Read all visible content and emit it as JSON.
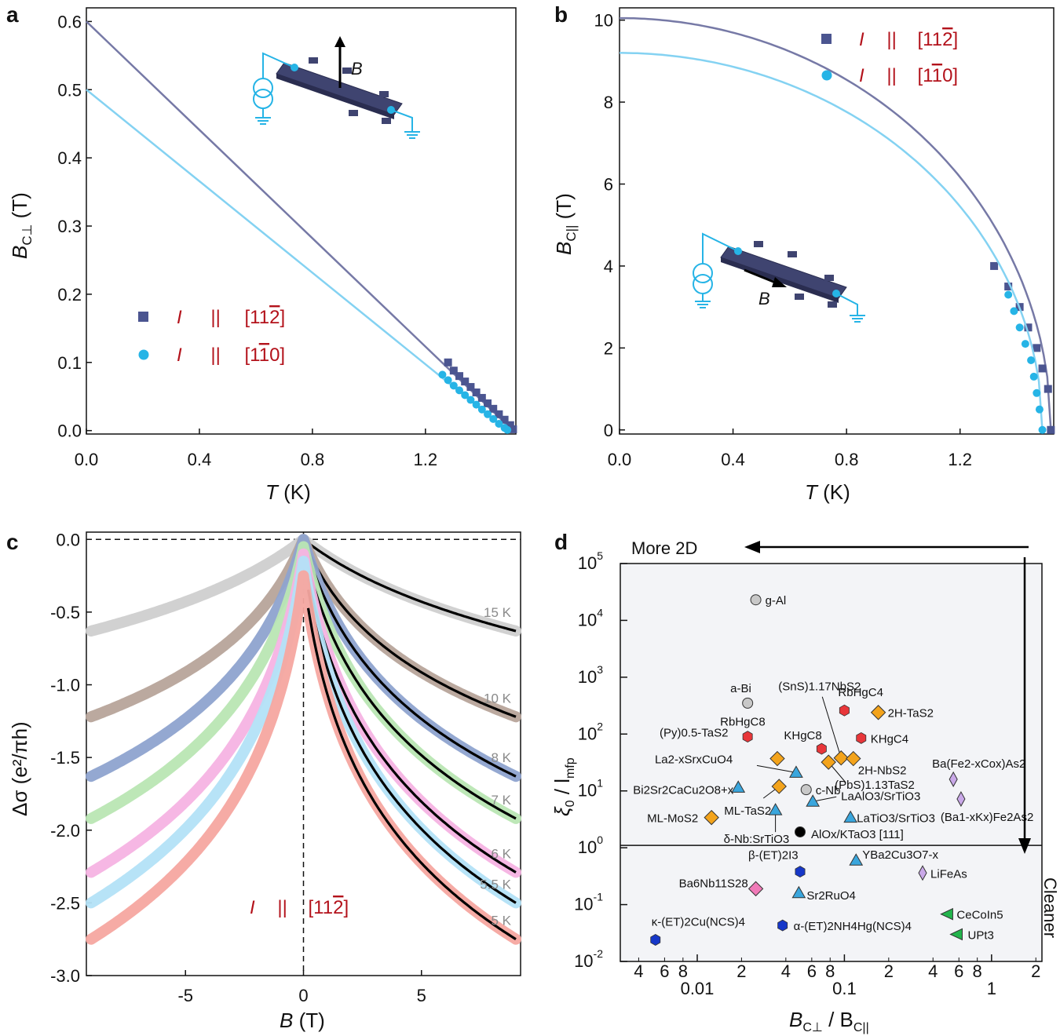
{
  "chart_data": [
    {
      "id": "a",
      "type": "line",
      "panel_label": "a",
      "xlabel": "T",
      "xlabel_unit": " (K)",
      "ylabel": "B",
      "ylabel_sub": "C⊥",
      "ylabel_unit": " (T)",
      "xlim": [
        0,
        1.52
      ],
      "ylim": [
        -0.005,
        0.62
      ],
      "xticks": [
        "0.0",
        "0.4",
        "0.8",
        "1.2"
      ],
      "xtick_values": [
        0,
        0.4,
        0.8,
        1.2
      ],
      "yticks": [
        "0.0",
        "0.1",
        "0.2",
        "0.3",
        "0.4",
        "0.5",
        "0.6"
      ],
      "ytick_values": [
        0,
        0.1,
        0.2,
        0.3,
        0.4,
        0.5,
        0.6
      ],
      "legend": [
        {
          "prefix": "I",
          "sep": "||",
          "dir": "[11",
          "bar": "2",
          "tail": "]",
          "marker": "square"
        },
        {
          "prefix": "I",
          "sep": "||",
          "dir": "[1",
          "bar": "1",
          "tail": "0]",
          "marker": "circle"
        }
      ],
      "inset_field_label": "B",
      "series": [
        {
          "name": "I || [11-2]",
          "color": "#7679a6",
          "marker_color": "#4b5590",
          "fit_x": [
            0,
            1.51
          ],
          "fit_y": [
            0.6,
            0
          ],
          "x": [
            1.28,
            1.3,
            1.32,
            1.34,
            1.36,
            1.38,
            1.4,
            1.42,
            1.44,
            1.46,
            1.48,
            1.5,
            1.51
          ],
          "y": [
            0.1,
            0.088,
            0.08,
            0.072,
            0.064,
            0.056,
            0.048,
            0.04,
            0.032,
            0.024,
            0.016,
            0.008,
            0.002
          ]
        },
        {
          "name": "I || [1-10]",
          "color": "#84d2f2",
          "marker_color": "#26b4e6",
          "fit_x": [
            0,
            1.49
          ],
          "fit_y": [
            0.5,
            0
          ],
          "x": [
            1.26,
            1.28,
            1.3,
            1.32,
            1.34,
            1.36,
            1.38,
            1.4,
            1.42,
            1.44,
            1.46,
            1.48,
            1.49
          ],
          "y": [
            0.082,
            0.074,
            0.066,
            0.059,
            0.052,
            0.045,
            0.038,
            0.031,
            0.024,
            0.017,
            0.01,
            0.004,
            0.001
          ]
        }
      ]
    },
    {
      "id": "b",
      "type": "line",
      "panel_label": "b",
      "xlabel": "T",
      "xlabel_unit": " (K)",
      "ylabel": "B",
      "ylabel_sub": "C||",
      "ylabel_unit": " (T)",
      "xlim": [
        0,
        1.53
      ],
      "ylim": [
        -0.1,
        10.3
      ],
      "xticks": [
        "0.0",
        "0.4",
        "0.8",
        "1.2"
      ],
      "xtick_values": [
        0,
        0.4,
        0.8,
        1.2
      ],
      "yticks": [
        "0",
        "2",
        "4",
        "6",
        "8",
        "10"
      ],
      "ytick_values": [
        0,
        2,
        4,
        6,
        8,
        10
      ],
      "legend": [
        {
          "prefix": "I",
          "sep": "||",
          "dir": "[11",
          "bar": "2",
          "tail": "]",
          "marker": "square"
        },
        {
          "prefix": "I",
          "sep": "||",
          "dir": "[1",
          "bar": "1",
          "tail": "0]",
          "marker": "circle"
        }
      ],
      "inset_field_label": "B",
      "series": [
        {
          "name": "I || [11-2]",
          "color": "#7679a6",
          "marker_color": "#4b5590",
          "B0": 10.05,
          "Tc": 1.52,
          "x": [
            1.32,
            1.37,
            1.41,
            1.44,
            1.47,
            1.49,
            1.51,
            1.52
          ],
          "y": [
            4.0,
            3.5,
            3.0,
            2.5,
            2.0,
            1.5,
            1.0,
            0.0
          ]
        },
        {
          "name": "I || [1-10]",
          "color": "#84d2f2",
          "marker_color": "#26b4e6",
          "B0": 9.2,
          "Tc": 1.49,
          "x": [
            1.37,
            1.39,
            1.41,
            1.43,
            1.45,
            1.46,
            1.47,
            1.48,
            1.49
          ],
          "y": [
            3.3,
            2.9,
            2.5,
            2.1,
            1.7,
            1.3,
            0.9,
            0.5,
            0.0
          ]
        }
      ]
    },
    {
      "id": "c",
      "type": "scatter",
      "panel_label": "c",
      "xlabel": "B",
      "xlabel_unit": " (T)",
      "ylabel": "Δσ (e²/πh)",
      "xlim": [
        -9.2,
        9.2
      ],
      "ylim": [
        -3.0,
        0.05
      ],
      "xticks": [
        "-5",
        "0",
        "5"
      ],
      "xtick_values": [
        -5,
        0,
        5
      ],
      "yticks": [
        "0.0",
        "-0.5",
        "-1.0",
        "-1.5",
        "-2.0",
        "-2.5",
        "-3.0"
      ],
      "ytick_values": [
        0,
        -0.5,
        -1.0,
        -1.5,
        -2.0,
        -2.5,
        -3.0
      ],
      "legend": {
        "prefix": "I",
        "sep": "||",
        "dir": "[11",
        "bar": "2",
        "tail": "]"
      },
      "series": [
        {
          "name": "15 K",
          "color": "#cfcfcf",
          "end": -0.63,
          "width": 4.5,
          "peak": 0.0
        },
        {
          "name": "10 K",
          "color": "#b7a49a",
          "end": -1.22,
          "width": 1.6,
          "peak": 0.0
        },
        {
          "name": "8 K",
          "color": "#8ea3cf",
          "end": -1.63,
          "width": 1.4,
          "peak": 0.0
        },
        {
          "name": "7 K",
          "color": "#b9e6b3",
          "end": -1.92,
          "width": 1.2,
          "peak": -0.05
        },
        {
          "name": "6 K",
          "color": "#f5b3e3",
          "end": -2.29,
          "width": 1.0,
          "peak": -0.1
        },
        {
          "name": "5.5 K",
          "color": "#b3e2f7",
          "end": -2.5,
          "width": 0.9,
          "peak": -0.15
        },
        {
          "name": "5 K",
          "color": "#f5a7a0",
          "end": -2.75,
          "width": 0.8,
          "peak": -0.25
        }
      ]
    },
    {
      "id": "d",
      "type": "scatter",
      "panel_label": "d",
      "xlabel": "B",
      "xlabel_sub1": "C⊥",
      "xlabel_mid": " / B",
      "xlabel_sub2": "C||",
      "ylabel": "ξ",
      "ylabel_sub1": "0",
      "ylabel_mid": " / l",
      "ylabel_sub2": "mfp",
      "log_x": [
        0.003,
        2.2
      ],
      "log_y": [
        -2,
        5
      ],
      "xticks_major": [
        {
          "label": "0.01",
          "value": 0.01
        },
        {
          "label": "0.1",
          "value": 0.1
        },
        {
          "label": "1",
          "value": 1
        }
      ],
      "xticks_minor": [
        {
          "label": "4",
          "value": 0.004
        },
        {
          "label": "6",
          "value": 0.006
        },
        {
          "label": "8",
          "value": 0.008
        },
        {
          "label": "2",
          "value": 0.02
        },
        {
          "label": "4",
          "value": 0.04
        },
        {
          "label": "6",
          "value": 0.06
        },
        {
          "label": "8",
          "value": 0.08
        },
        {
          "label": "2",
          "value": 0.2
        },
        {
          "label": "4",
          "value": 0.4
        },
        {
          "label": "6",
          "value": 0.6
        },
        {
          "label": "8",
          "value": 0.8
        },
        {
          "label": "2",
          "value": 2
        }
      ],
      "yticks": [
        {
          "base": "10",
          "exp": "5",
          "value": 5
        },
        {
          "base": "10",
          "exp": "4",
          "value": 4
        },
        {
          "base": "10",
          "exp": "3",
          "value": 3
        },
        {
          "base": "10",
          "exp": "2",
          "value": 2
        },
        {
          "base": "10",
          "exp": "1",
          "value": 1
        },
        {
          "base": "10",
          "exp": "0",
          "value": 0
        },
        {
          "base": "10",
          "exp": "-1",
          "value": -1
        },
        {
          "base": "10",
          "exp": "-2",
          "value": -2
        }
      ],
      "arrow_top": "More 2D",
      "arrow_right": "Cleaner",
      "points": [
        {
          "label": "g-Al",
          "x": 0.025,
          "y": 23000,
          "shape": "circle",
          "color": "#c8c8c8"
        },
        {
          "label": "a-Bi",
          "x": 0.022,
          "y": 350,
          "shape": "circle",
          "color": "#c8c8c8"
        },
        {
          "label": "RbHgC4",
          "x": 0.1,
          "y": 260,
          "shape": "hexagon",
          "color": "#e8363a"
        },
        {
          "label": "2H-TaS2",
          "x": 0.17,
          "y": 240,
          "shape": "diamond",
          "color": "#f3a31b"
        },
        {
          "label": "RbHgC8",
          "x": 0.022,
          "y": 90,
          "shape": "hexagon",
          "color": "#e8363a"
        },
        {
          "label": "KHgC4",
          "x": 0.13,
          "y": 85,
          "shape": "hexagon",
          "color": "#e8363a"
        },
        {
          "label": "KHgC8",
          "x": 0.07,
          "y": 55,
          "shape": "hexagon",
          "color": "#e8363a"
        },
        {
          "label": "(SnS)1.17NbS2",
          "x": 0.095,
          "y": 38,
          "shape": "diamond",
          "color": "#f3a31b"
        },
        {
          "label": "2H-NbS2",
          "x": 0.115,
          "y": 37,
          "shape": "diamond",
          "color": "#f3a31b"
        },
        {
          "label": "(PbS)1.13TaS2",
          "x": 0.078,
          "y": 32,
          "shape": "diamond",
          "color": "#f3a31b"
        },
        {
          "label": "(Py)0.5-TaS2",
          "x": 0.035,
          "y": 37,
          "shape": "diamond",
          "color": "#f3a31b"
        },
        {
          "label": "La2-xSrxCuO4",
          "x": 0.047,
          "y": 21,
          "shape": "triangle",
          "color": "#3aa6dd"
        },
        {
          "label": "Bi2Sr2CaCu2O8+x",
          "x": 0.019,
          "y": 11.5,
          "shape": "triangle",
          "color": "#3aa6dd"
        },
        {
          "label": "ML-TaS2",
          "x": 0.036,
          "y": 12,
          "shape": "diamond",
          "color": "#f3a31b"
        },
        {
          "label": "c-Nb",
          "x": 0.055,
          "y": 10.5,
          "shape": "circle",
          "color": "#c8c8c8"
        },
        {
          "label": "LaAlO3/SrTiO3",
          "x": 0.061,
          "y": 6.5,
          "shape": "triangle",
          "color": "#3aa6dd"
        },
        {
          "label": "LaTiO3/SrTiO3",
          "x": 0.11,
          "y": 3.4,
          "shape": "triangle",
          "color": "#3aa6dd"
        },
        {
          "label": "δ-Nb:SrTiO3",
          "x": 0.034,
          "y": 4.6,
          "shape": "triangle",
          "color": "#3aa6dd"
        },
        {
          "label": "ML-MoS2",
          "x": 0.0125,
          "y": 3.4,
          "shape": "diamond",
          "color": "#f3a31b"
        },
        {
          "label": "AlOx/KTaO3 [111]",
          "x": 0.05,
          "y": 1.9,
          "shape": "circle",
          "color": "#000000",
          "highlight": true
        },
        {
          "label": "Ba(Fe2-xCox)As2",
          "x": 0.55,
          "y": 16,
          "shape": "thin-diamond",
          "color": "#c9a8e8"
        },
        {
          "label": "(Ba1-xKx)Fe2As2",
          "x": 0.62,
          "y": 7.2,
          "shape": "thin-diamond",
          "color": "#c9a8e8"
        },
        {
          "label": "YBa2Cu3O7-x",
          "x": 0.12,
          "y": 0.6,
          "shape": "triangle",
          "color": "#3aa6dd"
        },
        {
          "label": "β-(ET)2I3",
          "x": 0.05,
          "y": 0.38,
          "shape": "hexagon",
          "color": "#1637c8"
        },
        {
          "label": "LiFeAs",
          "x": 0.34,
          "y": 0.36,
          "shape": "thin-diamond",
          "color": "#c9a8e8"
        },
        {
          "label": "Ba6Nb11S28",
          "x": 0.025,
          "y": 0.19,
          "shape": "diamond",
          "color": "#f07ab8"
        },
        {
          "label": "Sr2RuO4",
          "x": 0.049,
          "y": 0.16,
          "shape": "triangle",
          "color": "#3aa6dd"
        },
        {
          "label": "CeCoIn5",
          "x": 0.5,
          "y": 0.068,
          "shape": "triangle-left",
          "color": "#23b44c"
        },
        {
          "label": "κ-(ET)2Cu(NCS)4",
          "x": 0.0052,
          "y": 0.024,
          "shape": "hexagon",
          "color": "#1637c8"
        },
        {
          "label": "α-(ET)2NH4Hg(NCS)4",
          "x": 0.038,
          "y": 0.043,
          "shape": "hexagon",
          "color": "#1637c8"
        },
        {
          "label": "UPt3",
          "x": 0.58,
          "y": 0.03,
          "shape": "triangle-left",
          "color": "#23b44c"
        }
      ]
    }
  ]
}
